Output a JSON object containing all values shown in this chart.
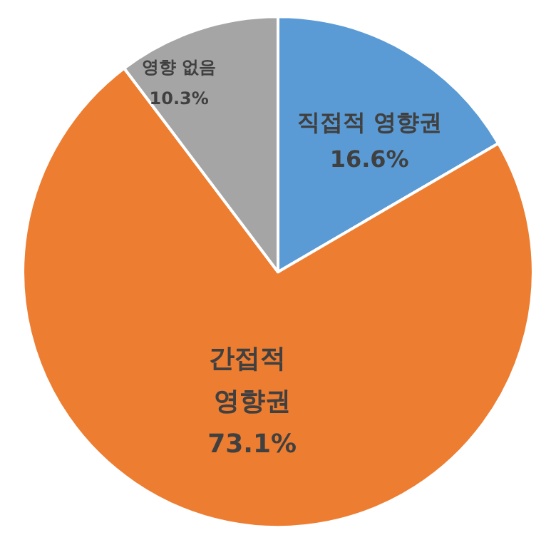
{
  "chart_data": {
    "type": "pie",
    "categories": [
      "직접적 영향권",
      "간접적 영향권",
      "영향 없음"
    ],
    "values": [
      16.6,
      73.1,
      10.3
    ],
    "colors": [
      "#5b9bd5",
      "#ed7d31",
      "#a5a5a5"
    ],
    "value_labels": [
      "16.6%",
      "73.1%",
      "10.3%"
    ],
    "legend": false
  }
}
